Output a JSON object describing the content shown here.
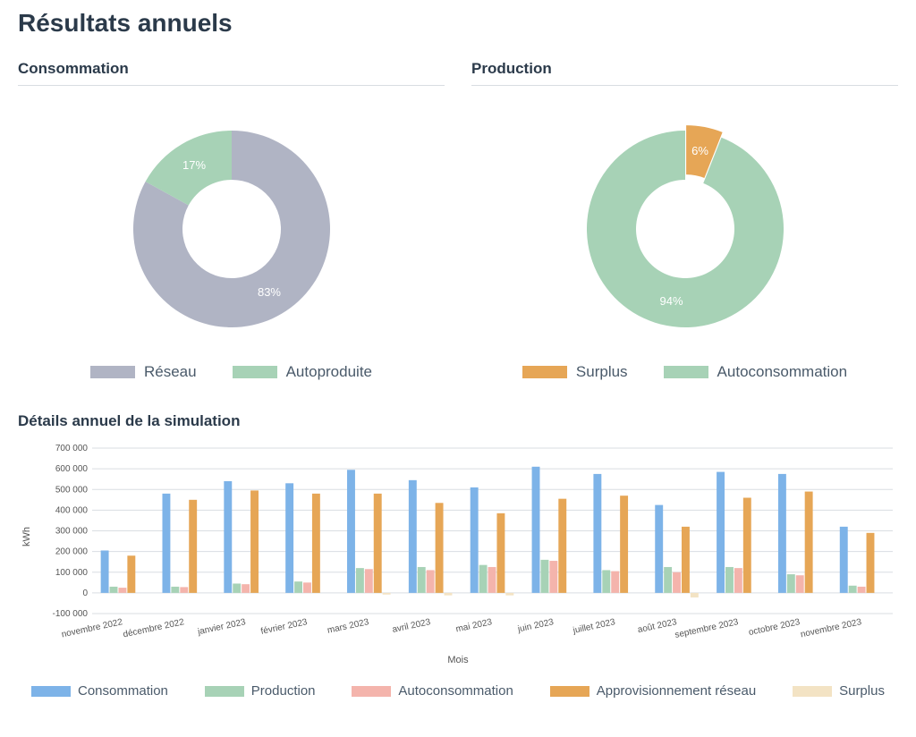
{
  "title": "Résultats annuels",
  "consommation": {
    "title": "Consommation",
    "slices": [
      {
        "label": "Réseau",
        "value": 83,
        "color": "#b0b4c4",
        "textLabel": "83%"
      },
      {
        "label": "Autoproduite",
        "value": 17,
        "color": "#a7d2b6",
        "textLabel": "17%"
      }
    ],
    "legend": [
      {
        "label": "Réseau",
        "color": "#b0b4c4"
      },
      {
        "label": "Autoproduite",
        "color": "#a7d2b6"
      }
    ]
  },
  "production": {
    "title": "Production",
    "slices": [
      {
        "label": "Surplus",
        "value": 6,
        "color": "#e6a656",
        "textLabel": "6%"
      },
      {
        "label": "Autoconsommation",
        "value": 94,
        "color": "#a7d2b6",
        "textLabel": "94%"
      }
    ],
    "legend": [
      {
        "label": "Surplus",
        "color": "#e6a656"
      },
      {
        "label": "Autoconsommation",
        "color": "#a7d2b6"
      }
    ]
  },
  "barChart": {
    "title": "Détails annuel de la simulation",
    "yLabel": "kWh",
    "xLabel": "Mois",
    "ymin": -100000,
    "ymax": 700000,
    "ystep": 100000,
    "yTickLabels": [
      "-100 000",
      "0",
      "100 000",
      "200 000",
      "300 000",
      "400 000",
      "500 000",
      "600 000",
      "700 000"
    ],
    "categories": [
      "novembre 2022",
      "décembre 2022",
      "janvier 2023",
      "février 2023",
      "mars 2023",
      "avril 2023",
      "mai 2023",
      "juin 2023",
      "juillet 2023",
      "août 2023",
      "septembre 2023",
      "octobre 2023",
      "novembre 2023"
    ],
    "series": [
      {
        "name": "Consommation",
        "color": "#7db3e8",
        "values": [
          205000,
          480000,
          540000,
          530000,
          595000,
          545000,
          510000,
          610000,
          575000,
          425000,
          585000,
          575000,
          320000
        ]
      },
      {
        "name": "Production",
        "color": "#a7d2b6",
        "values": [
          30000,
          30000,
          45000,
          55000,
          120000,
          125000,
          135000,
          160000,
          110000,
          125000,
          125000,
          90000,
          35000
        ]
      },
      {
        "name": "Autoconsommation",
        "color": "#f4b4ac",
        "values": [
          25000,
          28000,
          42000,
          50000,
          115000,
          110000,
          125000,
          155000,
          105000,
          100000,
          120000,
          85000,
          30000
        ]
      },
      {
        "name": "Approvisionnement réseau",
        "color": "#e6a656",
        "values": [
          180000,
          450000,
          495000,
          480000,
          480000,
          435000,
          385000,
          455000,
          470000,
          320000,
          460000,
          490000,
          290000
        ]
      },
      {
        "name": "Surplus",
        "color": "#f3e3c4",
        "values": [
          0,
          0,
          0,
          0,
          -8000,
          -12000,
          -12000,
          0,
          0,
          -22000,
          0,
          0,
          0
        ]
      }
    ],
    "legend": [
      {
        "label": "Consommation",
        "color": "#7db3e8"
      },
      {
        "label": "Production",
        "color": "#a7d2b6"
      },
      {
        "label": "Autoconsommation",
        "color": "#f4b4ac"
      },
      {
        "label": "Approvisionnement réseau",
        "color": "#e6a656"
      },
      {
        "label": "Surplus",
        "color": "#f3e3c4"
      }
    ],
    "gridColor": "#d9dde2",
    "axisColor": "#555",
    "tickFontSize": 10
  }
}
